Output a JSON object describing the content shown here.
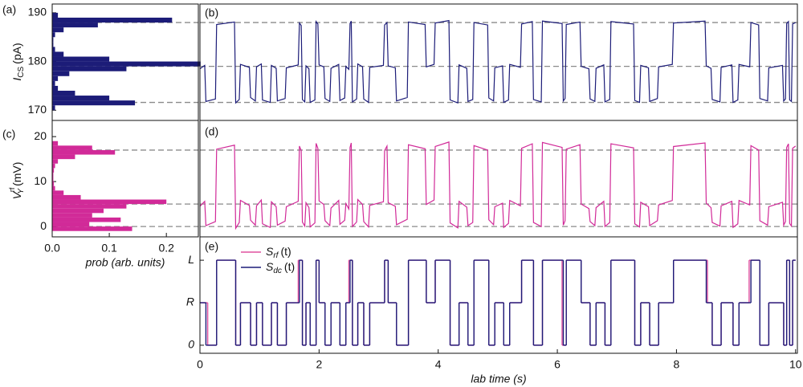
{
  "chart_data": [
    {
      "type": "histogram",
      "panel_label": "(a)",
      "ylabel": "I",
      "ylabel_sub": "CS",
      "ylabel_unit": "(pA)",
      "color": "#1c1c78",
      "bins": [
        170,
        171,
        172,
        173,
        174,
        175,
        176,
        177,
        178,
        179,
        180,
        181,
        182,
        183,
        184,
        185,
        186,
        187,
        188,
        189,
        190
      ],
      "counts": [
        0.005,
        0.145,
        0.1,
        0.04,
        0.01,
        0.005,
        0.01,
        0.03,
        0.13,
        0.26,
        0.1,
        0.02,
        0.005,
        0.002,
        0.002,
        0.005,
        0.02,
        0.08,
        0.21,
        0.01
      ],
      "xlim": [
        0,
        0.256
      ],
      "ylim": [
        167.9,
        191.8
      ],
      "yticks": [
        170,
        180,
        190
      ],
      "hlines": [
        188,
        179,
        171.6
      ]
    },
    {
      "type": "line",
      "panel_label": "(b)",
      "color": "#1c1c78",
      "x": [
        0,
        0.08,
        0.1,
        0.26,
        0.28,
        0.58,
        0.6,
        0.66,
        0.68,
        0.83,
        0.85,
        0.93,
        0.95,
        1.03,
        1.05,
        1.18,
        1.2,
        1.28,
        1.3,
        1.43,
        1.45,
        1.65,
        1.67,
        1.7,
        1.72,
        1.76,
        1.78,
        1.83,
        1.85,
        1.93,
        1.95,
        1.98,
        2,
        2.08,
        2.1,
        2.18,
        2.2,
        2.33,
        2.35,
        2.43,
        2.45,
        2.5,
        2.52,
        2.54,
        2.56,
        2.63,
        2.65,
        2.73,
        2.75,
        2.83,
        2.85,
        3.08,
        3.1,
        3.14,
        3.16,
        3.28,
        3.3,
        3.48,
        3.5,
        3.78,
        3.8,
        3.93,
        3.95,
        4.18,
        4.2,
        4.33,
        4.35,
        4.48,
        4.5,
        4.58,
        4.6,
        4.83,
        4.85,
        4.93,
        4.95,
        5.08,
        5.1,
        5.18,
        5.2,
        5.38,
        5.4,
        5.58,
        5.6,
        5.73,
        5.75,
        6.08,
        6.1,
        6.13,
        6.15,
        6.38,
        6.4,
        6.53,
        6.55,
        6.63,
        6.65,
        6.78,
        6.8,
        6.88,
        6.9,
        7.28,
        7.3,
        7.38,
        7.4,
        7.53,
        7.55,
        7.68,
        7.7,
        7.93,
        7.95,
        8.48,
        8.5,
        8.58,
        8.6,
        8.73,
        8.75,
        8.93,
        8.95,
        9.03,
        9.05,
        9.23,
        9.25,
        9.38,
        9.4,
        9.53,
        9.55,
        9.78,
        9.8,
        9.83,
        9.85,
        9.88,
        9.9,
        9.93,
        9.95,
        10
      ],
      "values": [
        178.5,
        179.2,
        171.8,
        172.3,
        187.6,
        188.1,
        171.5,
        172.2,
        179.4,
        178.8,
        172.6,
        171.9,
        178.9,
        179.5,
        172.1,
        171.6,
        179.2,
        178.6,
        171.9,
        172.4,
        178.7,
        179.3,
        187.9,
        187.4,
        172.2,
        171.7,
        179.1,
        178.5,
        171.6,
        172.1,
        188.2,
        187.7,
        179.3,
        178.9,
        172.4,
        171.8,
        178.6,
        179.4,
        172.0,
        172.5,
        179.0,
        178.4,
        187.8,
        188.3,
        171.7,
        172.3,
        179.5,
        178.9,
        172.3,
        171.6,
        178.8,
        179.2,
        187.5,
        188.0,
        179.1,
        178.7,
        171.9,
        172.6,
        188.1,
        187.6,
        178.9,
        179.4,
        187.9,
        188.4,
        172.1,
        171.5,
        179.3,
        178.6,
        171.8,
        172.2,
        188.0,
        187.5,
        172.5,
        171.9,
        178.7,
        179.1,
        171.6,
        172.1,
        179.4,
        178.8,
        187.7,
        188.2,
        172.2,
        171.7,
        188.3,
        187.8,
        171.9,
        172.4,
        187.6,
        188.1,
        179.0,
        178.5,
        172.3,
        171.8,
        178.6,
        179.3,
        171.7,
        172.2,
        188.2,
        187.7,
        172.0,
        171.6,
        179.2,
        178.7,
        171.8,
        172.4,
        178.9,
        179.4,
        187.9,
        188.3,
        179.1,
        178.6,
        172.2,
        171.7,
        178.8,
        179.3,
        171.6,
        172.1,
        179.4,
        178.9,
        188.0,
        187.5,
        172.4,
        171.9,
        178.7,
        179.2,
        171.9,
        172.3,
        187.8,
        188.2,
        172.1,
        171.8,
        187.7,
        188.0
      ],
      "xlim": [
        0,
        10.03
      ],
      "ylim": [
        167.9,
        191.8
      ],
      "hlines": [
        188,
        179,
        171.6
      ]
    },
    {
      "type": "histogram",
      "panel_label": "(c)",
      "ylabel": "V",
      "ylabel_sup": "rf",
      "ylabel_sub": "Y",
      "ylabel_unit": "(mV)",
      "color": "#d12a98",
      "bins": [
        -1,
        0,
        1,
        2,
        3,
        4,
        5,
        6,
        7,
        8,
        9,
        10,
        11,
        12,
        13,
        14,
        15,
        16,
        17,
        18,
        19
      ],
      "counts": [
        0.14,
        0.065,
        0.12,
        0.07,
        0.09,
        0.13,
        0.2,
        0.05,
        0.02,
        0.005,
        0.003,
        0.002,
        0.002,
        0.003,
        0.005,
        0.01,
        0.04,
        0.11,
        0.07,
        0.01
      ],
      "xlim": [
        0,
        0.256
      ],
      "ylim": [
        -2.3,
        23.6
      ],
      "yticks": [
        0,
        10,
        20
      ],
      "hlines": [
        17,
        5,
        0
      ],
      "xticks": [
        {
          "value": 0,
          "label": "0.0"
        },
        0.1,
        0.2
      ],
      "xlabel": "prob (arb. units)"
    },
    {
      "type": "line",
      "panel_label": "(d)",
      "color": "#d12a98",
      "x": [
        0,
        0.08,
        0.1,
        0.26,
        0.28,
        0.58,
        0.6,
        0.66,
        0.68,
        0.83,
        0.85,
        0.93,
        0.95,
        1.03,
        1.05,
        1.18,
        1.2,
        1.28,
        1.3,
        1.43,
        1.45,
        1.65,
        1.67,
        1.7,
        1.72,
        1.76,
        1.78,
        1.83,
        1.85,
        1.93,
        1.95,
        1.98,
        2,
        2.08,
        2.1,
        2.18,
        2.2,
        2.33,
        2.35,
        2.43,
        2.45,
        2.5,
        2.52,
        2.54,
        2.56,
        2.63,
        2.65,
        2.73,
        2.75,
        2.83,
        2.85,
        3.08,
        3.1,
        3.14,
        3.16,
        3.28,
        3.3,
        3.48,
        3.5,
        3.78,
        3.8,
        3.93,
        3.95,
        4.18,
        4.2,
        4.33,
        4.35,
        4.48,
        4.5,
        4.58,
        4.6,
        4.83,
        4.85,
        4.93,
        4.95,
        5.08,
        5.1,
        5.18,
        5.2,
        5.38,
        5.4,
        5.58,
        5.6,
        5.73,
        5.75,
        6.08,
        6.1,
        6.13,
        6.15,
        6.38,
        6.4,
        6.53,
        6.55,
        6.63,
        6.65,
        6.78,
        6.8,
        6.88,
        6.9,
        7.28,
        7.3,
        7.38,
        7.4,
        7.53,
        7.55,
        7.68,
        7.7,
        7.93,
        7.95,
        8.48,
        8.5,
        8.58,
        8.6,
        8.73,
        8.75,
        8.93,
        8.95,
        9.03,
        9.05,
        9.23,
        9.25,
        9.38,
        9.4,
        9.53,
        9.55,
        9.78,
        9.8,
        9.83,
        9.85,
        9.88,
        9.9,
        9.93,
        9.95,
        10
      ],
      "values": [
        4.5,
        5.6,
        0.2,
        1.1,
        17.2,
        18.1,
        -0.4,
        0.9,
        5.8,
        4.7,
        1.4,
        0.3,
        4.6,
        5.9,
        0.6,
        -0.2,
        5.5,
        4.4,
        0.3,
        1.2,
        4.4,
        5.6,
        17.9,
        16.9,
        1.0,
        0.1,
        5.3,
        4.2,
        -0.1,
        0.8,
        18.5,
        17.4,
        5.7,
        4.9,
        1.3,
        0.2,
        4.1,
        5.8,
        0.5,
        1.4,
        5.1,
        3.9,
        17.6,
        18.6,
        0.0,
        1.0,
        6.0,
        4.9,
        1.1,
        -0.1,
        4.7,
        5.5,
        16.9,
        17.9,
        5.3,
        4.5,
        0.4,
        1.6,
        18.2,
        17.3,
        4.9,
        5.9,
        17.8,
        18.8,
        0.8,
        -0.3,
        5.6,
        4.3,
        0.2,
        0.9,
        18.0,
        17.0,
        1.5,
        0.4,
        4.4,
        5.2,
        -0.2,
        0.7,
        5.8,
        4.6,
        17.4,
        18.4,
        0.9,
        0.0,
        18.7,
        17.6,
        0.3,
        1.3,
        17.2,
        18.2,
        5.0,
        4.0,
        1.1,
        0.2,
        4.2,
        5.6,
        0.0,
        0.9,
        18.4,
        17.5,
        0.6,
        -0.1,
        5.4,
        4.4,
        0.2,
        1.3,
        4.8,
        5.8,
        17.8,
        18.6,
        5.2,
        4.2,
        0.9,
        0.1,
        4.6,
        5.6,
        -0.2,
        0.6,
        5.8,
        4.8,
        18.0,
        17.0,
        1.3,
        0.3,
        4.4,
        5.4,
        0.3,
        1.1,
        17.6,
        18.4,
        0.7,
        0.1,
        17.4,
        17.9
      ],
      "xlim": [
        0,
        10.03
      ],
      "ylim": [
        -2.3,
        23.6
      ],
      "hlines": [
        17,
        5,
        0
      ]
    },
    {
      "type": "step",
      "panel_label": "(e)",
      "xlim": [
        0,
        10.03
      ],
      "ylim": [
        -0.19,
        2.55
      ],
      "yticks": [
        0,
        {
          "value": 1,
          "label": "R"
        },
        {
          "value": 2,
          "label": "L"
        }
      ],
      "xticks": [
        0,
        2,
        4,
        6,
        8,
        10
      ],
      "xlabel": "lab time (s)",
      "series": [
        {
          "name": "S",
          "name_sub": "rf",
          "name_suffix": "(t)",
          "color": "#e0509f",
          "x": [
            0,
            0.13,
            0.28,
            0.6,
            0.68,
            0.85,
            0.95,
            1.05,
            1.2,
            1.3,
            1.45,
            1.65,
            1.72,
            1.78,
            1.85,
            1.95,
            2,
            2.1,
            2.2,
            2.35,
            2.45,
            2.5,
            2.56,
            2.65,
            2.75,
            2.85,
            3.1,
            3.16,
            3.3,
            3.5,
            3.8,
            3.95,
            4.2,
            4.35,
            4.5,
            4.6,
            4.85,
            4.95,
            5.1,
            5.2,
            5.4,
            5.6,
            5.75,
            6.08,
            6.15,
            6.4,
            6.55,
            6.65,
            6.8,
            6.9,
            7.3,
            7.4,
            7.55,
            7.7,
            7.95,
            8.52,
            8.6,
            8.75,
            8.95,
            9.05,
            9.22,
            9.4,
            9.55,
            9.8,
            9.85,
            9.9,
            9.95,
            10
          ],
          "values": [
            1,
            0,
            2,
            0,
            1,
            0,
            1,
            0,
            1,
            0,
            1,
            2,
            0,
            1,
            0,
            2,
            1,
            0,
            1,
            0,
            1,
            2,
            0,
            1,
            0,
            1,
            2,
            1,
            0,
            2,
            1,
            2,
            0,
            1,
            0,
            2,
            0,
            1,
            0,
            1,
            2,
            0,
            2,
            0,
            2,
            1,
            0,
            1,
            0,
            2,
            0,
            1,
            0,
            1,
            2,
            1,
            0,
            1,
            0,
            1,
            2,
            0,
            1,
            0,
            2,
            0,
            2,
            2
          ]
        },
        {
          "name": "S",
          "name_sub": "dc",
          "name_suffix": "(t)",
          "color": "#1c1c78",
          "x": [
            0,
            0.1,
            0.28,
            0.6,
            0.68,
            0.85,
            0.95,
            1.05,
            1.2,
            1.3,
            1.45,
            1.67,
            1.72,
            1.78,
            1.85,
            1.95,
            2,
            2.1,
            2.2,
            2.35,
            2.45,
            2.52,
            2.56,
            2.65,
            2.75,
            2.85,
            3.1,
            3.16,
            3.3,
            3.5,
            3.8,
            3.95,
            4.2,
            4.35,
            4.5,
            4.6,
            4.85,
            4.95,
            5.1,
            5.2,
            5.4,
            5.6,
            5.75,
            6.1,
            6.15,
            6.4,
            6.55,
            6.65,
            6.8,
            6.9,
            7.3,
            7.4,
            7.55,
            7.7,
            7.95,
            8.5,
            8.6,
            8.75,
            8.95,
            9.05,
            9.25,
            9.4,
            9.55,
            9.8,
            9.85,
            9.9,
            9.95,
            10
          ],
          "values": [
            1,
            0,
            2,
            0,
            1,
            0,
            1,
            0,
            1,
            0,
            1,
            2,
            0,
            1,
            0,
            2,
            1,
            0,
            1,
            0,
            1,
            2,
            0,
            1,
            0,
            1,
            2,
            1,
            0,
            2,
            1,
            2,
            0,
            1,
            0,
            2,
            0,
            1,
            0,
            1,
            2,
            0,
            2,
            0,
            2,
            1,
            0,
            1,
            0,
            2,
            0,
            1,
            0,
            1,
            2,
            1,
            0,
            1,
            0,
            1,
            2,
            0,
            1,
            0,
            2,
            0,
            2,
            2
          ]
        }
      ]
    }
  ]
}
